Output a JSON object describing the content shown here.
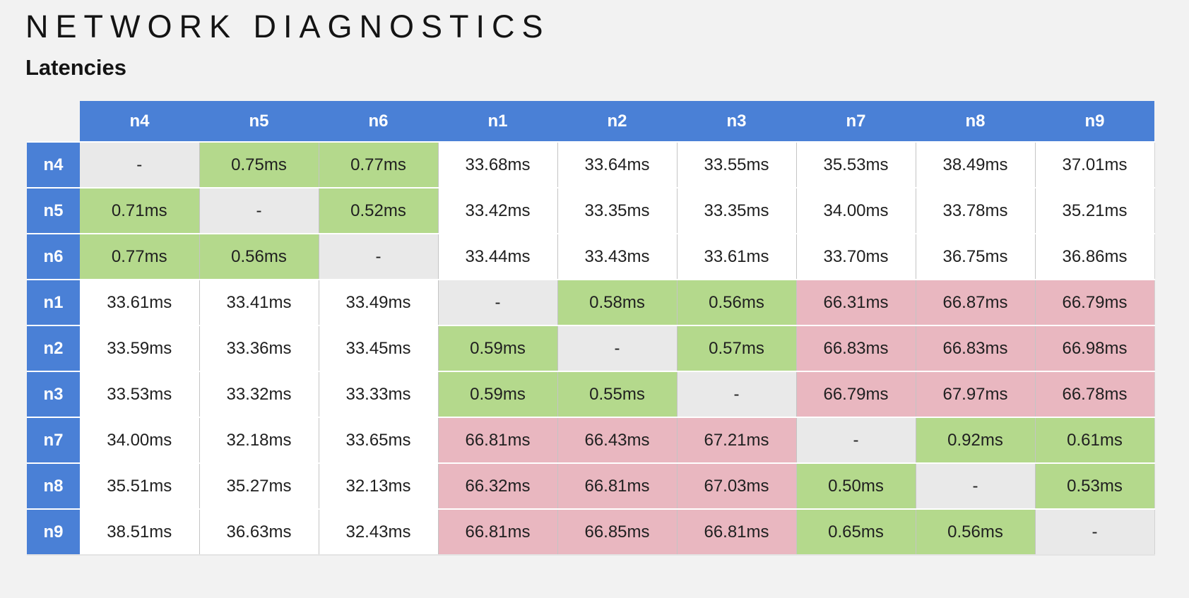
{
  "header": {
    "title": "NETWORK DIAGNOSTICS",
    "subtitle": "Latencies"
  },
  "colors": {
    "header_blue": "#4a80d6",
    "cell_green": "#b4d98c",
    "cell_pink": "#e9b7c0",
    "cell_diagonal_gray": "#e9e9e9",
    "cell_white": "#ffffff",
    "page_background": "#f2f2f2"
  },
  "chart_data": {
    "type": "heatmap",
    "title": "Latencies",
    "unit": "ms",
    "columns": [
      "n4",
      "n5",
      "n6",
      "n1",
      "n2",
      "n3",
      "n7",
      "n8",
      "n9"
    ],
    "rows": [
      {
        "label": "n4",
        "values": [
          "-",
          "0.75ms",
          "0.77ms",
          "33.68ms",
          "33.64ms",
          "33.55ms",
          "35.53ms",
          "38.49ms",
          "37.01ms"
        ],
        "colors": [
          "gray",
          "green",
          "green",
          "white",
          "white",
          "white",
          "white",
          "white",
          "white"
        ]
      },
      {
        "label": "n5",
        "values": [
          "0.71ms",
          "-",
          "0.52ms",
          "33.42ms",
          "33.35ms",
          "33.35ms",
          "34.00ms",
          "33.78ms",
          "35.21ms"
        ],
        "colors": [
          "green",
          "gray",
          "green",
          "white",
          "white",
          "white",
          "white",
          "white",
          "white"
        ]
      },
      {
        "label": "n6",
        "values": [
          "0.77ms",
          "0.56ms",
          "-",
          "33.44ms",
          "33.43ms",
          "33.61ms",
          "33.70ms",
          "36.75ms",
          "36.86ms"
        ],
        "colors": [
          "green",
          "green",
          "gray",
          "white",
          "white",
          "white",
          "white",
          "white",
          "white"
        ]
      },
      {
        "label": "n1",
        "values": [
          "33.61ms",
          "33.41ms",
          "33.49ms",
          "-",
          "0.58ms",
          "0.56ms",
          "66.31ms",
          "66.87ms",
          "66.79ms"
        ],
        "colors": [
          "white",
          "white",
          "white",
          "gray",
          "green",
          "green",
          "pink",
          "pink",
          "pink"
        ]
      },
      {
        "label": "n2",
        "values": [
          "33.59ms",
          "33.36ms",
          "33.45ms",
          "0.59ms",
          "-",
          "0.57ms",
          "66.83ms",
          "66.83ms",
          "66.98ms"
        ],
        "colors": [
          "white",
          "white",
          "white",
          "green",
          "gray",
          "green",
          "pink",
          "pink",
          "pink"
        ]
      },
      {
        "label": "n3",
        "values": [
          "33.53ms",
          "33.32ms",
          "33.33ms",
          "0.59ms",
          "0.55ms",
          "-",
          "66.79ms",
          "67.97ms",
          "66.78ms"
        ],
        "colors": [
          "white",
          "white",
          "white",
          "green",
          "green",
          "gray",
          "pink",
          "pink",
          "pink"
        ]
      },
      {
        "label": "n7",
        "values": [
          "34.00ms",
          "32.18ms",
          "33.65ms",
          "66.81ms",
          "66.43ms",
          "67.21ms",
          "-",
          "0.92ms",
          "0.61ms"
        ],
        "colors": [
          "white",
          "white",
          "white",
          "pink",
          "pink",
          "pink",
          "gray",
          "green",
          "green"
        ]
      },
      {
        "label": "n8",
        "values": [
          "35.51ms",
          "35.27ms",
          "32.13ms",
          "66.32ms",
          "66.81ms",
          "67.03ms",
          "0.50ms",
          "-",
          "0.53ms"
        ],
        "colors": [
          "white",
          "white",
          "white",
          "pink",
          "pink",
          "pink",
          "green",
          "gray",
          "green"
        ]
      },
      {
        "label": "n9",
        "values": [
          "38.51ms",
          "36.63ms",
          "32.43ms",
          "66.81ms",
          "66.85ms",
          "66.81ms",
          "0.65ms",
          "0.56ms",
          "-"
        ],
        "colors": [
          "white",
          "white",
          "white",
          "pink",
          "pink",
          "pink",
          "green",
          "green",
          "gray"
        ]
      }
    ],
    "legend_position": "none",
    "grid": true
  }
}
